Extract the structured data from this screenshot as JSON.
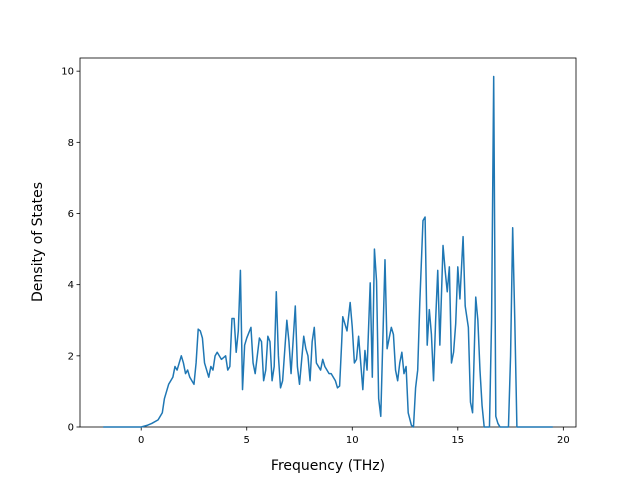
{
  "chart_data": {
    "type": "line",
    "xlabel": "Frequency (THz)",
    "ylabel": "Density of States",
    "xlim": [
      -2.9,
      20.6
    ],
    "ylim": [
      0,
      10.37
    ],
    "xticks": [
      0,
      5,
      10,
      15,
      20
    ],
    "yticks": [
      0,
      2,
      4,
      6,
      8,
      10
    ],
    "series": [
      {
        "color": "#1f77b4",
        "x": [
          -1.8,
          -1.0,
          0.0,
          0.3,
          0.5,
          0.8,
          1.0,
          1.1,
          1.3,
          1.5,
          1.6,
          1.7,
          1.9,
          2.0,
          2.1,
          2.2,
          2.3,
          2.4,
          2.5,
          2.6,
          2.7,
          2.8,
          2.9,
          3.0,
          3.2,
          3.3,
          3.4,
          3.5,
          3.6,
          3.8,
          4.0,
          4.1,
          4.2,
          4.3,
          4.4,
          4.5,
          4.6,
          4.7,
          4.8,
          4.9,
          5.0,
          5.2,
          5.3,
          5.4,
          5.6,
          5.7,
          5.8,
          5.9,
          6.0,
          6.1,
          6.2,
          6.3,
          6.4,
          6.5,
          6.6,
          6.7,
          6.9,
          7.0,
          7.1,
          7.3,
          7.4,
          7.5,
          7.7,
          7.8,
          7.9,
          8.0,
          8.1,
          8.2,
          8.3,
          8.5,
          8.6,
          8.7,
          8.9,
          9.0,
          9.2,
          9.3,
          9.4,
          9.5,
          9.55,
          9.65,
          9.75,
          9.9,
          10.0,
          10.1,
          10.2,
          10.3,
          10.4,
          10.5,
          10.6,
          10.7,
          10.85,
          10.95,
          11.05,
          11.15,
          11.25,
          11.35,
          11.45,
          11.55,
          11.65,
          11.75,
          11.85,
          11.95,
          12.05,
          12.15,
          12.25,
          12.35,
          12.45,
          12.55,
          12.65,
          12.8,
          12.9,
          13.0,
          13.1,
          13.2,
          13.35,
          13.45,
          13.55,
          13.65,
          13.75,
          13.85,
          13.95,
          14.05,
          14.15,
          14.3,
          14.4,
          14.5,
          14.6,
          14.7,
          14.8,
          14.9,
          15.0,
          15.1,
          15.25,
          15.35,
          15.5,
          15.6,
          15.7,
          15.85,
          15.95,
          16.05,
          16.15,
          16.25,
          16.5,
          16.6,
          16.7,
          16.8,
          16.9,
          17.0,
          17.4,
          17.5,
          17.6,
          17.7,
          17.8,
          19.5
        ],
        "values": [
          0,
          0,
          0,
          0.05,
          0.1,
          0.2,
          0.4,
          0.8,
          1.2,
          1.4,
          1.7,
          1.6,
          2.0,
          1.8,
          1.5,
          1.6,
          1.4,
          1.3,
          1.2,
          1.8,
          2.75,
          2.7,
          2.5,
          1.8,
          1.4,
          1.7,
          1.6,
          2.0,
          2.1,
          1.9,
          2.0,
          1.6,
          1.7,
          3.05,
          3.05,
          2.1,
          2.7,
          4.4,
          1.05,
          2.3,
          2.5,
          2.8,
          1.8,
          1.5,
          2.5,
          2.4,
          1.3,
          1.6,
          2.55,
          2.4,
          1.3,
          1.7,
          3.8,
          2.0,
          1.1,
          1.3,
          3.0,
          2.4,
          1.5,
          3.4,
          1.7,
          1.2,
          2.55,
          2.2,
          2.0,
          1.3,
          2.4,
          2.8,
          1.8,
          1.6,
          1.9,
          1.7,
          1.5,
          1.5,
          1.3,
          1.1,
          1.15,
          2.4,
          3.1,
          2.9,
          2.7,
          3.5,
          2.8,
          1.8,
          1.9,
          2.55,
          1.8,
          1.05,
          2.15,
          1.6,
          4.05,
          1.4,
          5.0,
          4.1,
          0.8,
          0.3,
          2.5,
          4.7,
          2.2,
          2.5,
          2.8,
          2.6,
          1.6,
          1.3,
          1.8,
          2.1,
          1.5,
          1.7,
          0.4,
          0.05,
          0,
          1.1,
          1.6,
          3.5,
          5.8,
          5.9,
          2.3,
          3.3,
          2.6,
          1.3,
          3.0,
          4.4,
          2.3,
          5.1,
          4.4,
          3.8,
          4.5,
          1.8,
          2.1,
          2.9,
          4.5,
          3.6,
          5.35,
          3.4,
          2.8,
          0.7,
          0.4,
          3.65,
          3.0,
          1.6,
          0.6,
          0,
          0,
          3.0,
          9.85,
          0.3,
          0.1,
          0,
          0,
          2.0,
          5.6,
          3.0,
          0,
          0
        ]
      }
    ]
  }
}
